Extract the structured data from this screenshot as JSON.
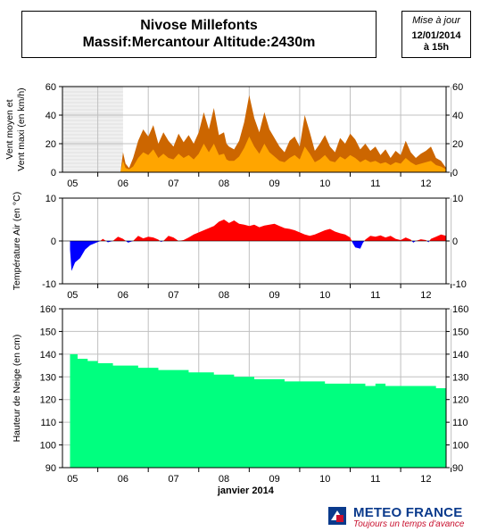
{
  "header": {
    "title_line1": "Nivose Millefonts",
    "title_line2": "Massif:Mercantour Altitude:2430m"
  },
  "update": {
    "label": "Mise à jour",
    "date": "12/01/2014",
    "time": "à 15h"
  },
  "logo": {
    "name": "METEO FRANCE",
    "slogan": "Toujours un temps d'avance",
    "colors": {
      "blue": "#0a3a8c",
      "red": "#c8102e"
    }
  },
  "chart_data": [
    {
      "type": "area",
      "ylabel": "Vent moyen et\nVent maxi (en km/h)",
      "x": [
        "05",
        "06",
        "07",
        "08",
        "09",
        "10",
        "11",
        "12"
      ],
      "ylim": [
        0,
        60
      ],
      "yticks": [
        0,
        20,
        40,
        60
      ],
      "grid": true,
      "colors": {
        "max": "#cc6600",
        "mean": "#ffa500",
        "nodata": "#e8e8e8"
      },
      "nodata_range": [
        "05",
        "06"
      ],
      "series": [
        {
          "name": "",
          "role": "max",
          "values": [
            [
              5.95,
              0
            ],
            [
              6.0,
              14
            ],
            [
              6.05,
              6
            ],
            [
              6.12,
              3
            ],
            [
              6.2,
              10
            ],
            [
              6.3,
              22
            ],
            [
              6.4,
              30
            ],
            [
              6.5,
              25
            ],
            [
              6.6,
              33
            ],
            [
              6.7,
              20
            ],
            [
              6.8,
              28
            ],
            [
              6.9,
              22
            ],
            [
              7.0,
              18
            ],
            [
              7.1,
              27
            ],
            [
              7.2,
              21
            ],
            [
              7.3,
              26
            ],
            [
              7.4,
              20
            ],
            [
              7.5,
              28
            ],
            [
              7.6,
              42
            ],
            [
              7.7,
              30
            ],
            [
              7.8,
              45
            ],
            [
              7.9,
              26
            ],
            [
              8.0,
              28
            ],
            [
              8.05,
              20
            ],
            [
              8.1,
              18
            ],
            [
              8.2,
              16
            ],
            [
              8.3,
              22
            ],
            [
              8.4,
              35
            ],
            [
              8.5,
              54
            ],
            [
              8.6,
              38
            ],
            [
              8.7,
              28
            ],
            [
              8.8,
              42
            ],
            [
              8.9,
              30
            ],
            [
              9.0,
              24
            ],
            [
              9.1,
              18
            ],
            [
              9.2,
              14
            ],
            [
              9.3,
              22
            ],
            [
              9.4,
              25
            ],
            [
              9.5,
              18
            ],
            [
              9.6,
              40
            ],
            [
              9.7,
              28
            ],
            [
              9.8,
              15
            ],
            [
              9.9,
              20
            ],
            [
              10.0,
              26
            ],
            [
              10.1,
              18
            ],
            [
              10.2,
              14
            ],
            [
              10.3,
              24
            ],
            [
              10.4,
              20
            ],
            [
              10.5,
              27
            ],
            [
              10.6,
              23
            ],
            [
              10.7,
              16
            ],
            [
              10.8,
              20
            ],
            [
              10.9,
              15
            ],
            [
              11.0,
              18
            ],
            [
              11.1,
              12
            ],
            [
              11.2,
              16
            ],
            [
              11.3,
              10
            ],
            [
              11.4,
              15
            ],
            [
              11.5,
              12
            ],
            [
              11.6,
              22
            ],
            [
              11.7,
              14
            ],
            [
              11.8,
              10
            ],
            [
              11.9,
              13
            ],
            [
              12.0,
              15
            ],
            [
              12.1,
              18
            ],
            [
              12.2,
              10
            ],
            [
              12.3,
              8
            ],
            [
              12.4,
              3
            ]
          ]
        },
        {
          "name": "",
          "role": "mean",
          "values": [
            [
              5.95,
              0
            ],
            [
              6.0,
              8
            ],
            [
              6.05,
              3
            ],
            [
              6.12,
              2
            ],
            [
              6.2,
              4
            ],
            [
              6.3,
              10
            ],
            [
              6.4,
              14
            ],
            [
              6.5,
              12
            ],
            [
              6.6,
              16
            ],
            [
              6.7,
              10
            ],
            [
              6.8,
              13
            ],
            [
              6.9,
              10
            ],
            [
              7.0,
              9
            ],
            [
              7.1,
              13
            ],
            [
              7.2,
              10
            ],
            [
              7.3,
              12
            ],
            [
              7.4,
              9
            ],
            [
              7.5,
              13
            ],
            [
              7.6,
              20
            ],
            [
              7.7,
              14
            ],
            [
              7.8,
              20
            ],
            [
              7.9,
              12
            ],
            [
              8.0,
              13
            ],
            [
              8.05,
              9
            ],
            [
              8.1,
              8
            ],
            [
              8.2,
              8
            ],
            [
              8.3,
              11
            ],
            [
              8.4,
              17
            ],
            [
              8.5,
              25
            ],
            [
              8.6,
              18
            ],
            [
              8.7,
              13
            ],
            [
              8.8,
              20
            ],
            [
              8.9,
              14
            ],
            [
              9.0,
              11
            ],
            [
              9.1,
              8
            ],
            [
              9.2,
              7
            ],
            [
              9.3,
              10
            ],
            [
              9.4,
              12
            ],
            [
              9.5,
              9
            ],
            [
              9.6,
              18
            ],
            [
              9.7,
              13
            ],
            [
              9.8,
              7
            ],
            [
              9.9,
              9
            ],
            [
              10.0,
              12
            ],
            [
              10.1,
              8
            ],
            [
              10.2,
              7
            ],
            [
              10.3,
              11
            ],
            [
              10.4,
              9
            ],
            [
              10.5,
              12
            ],
            [
              10.6,
              10
            ],
            [
              10.7,
              7
            ],
            [
              10.8,
              9
            ],
            [
              10.9,
              7
            ],
            [
              11.0,
              8
            ],
            [
              11.1,
              6
            ],
            [
              11.2,
              7
            ],
            [
              11.3,
              5
            ],
            [
              11.4,
              7
            ],
            [
              11.5,
              6
            ],
            [
              11.6,
              10
            ],
            [
              11.7,
              7
            ],
            [
              11.8,
              5
            ],
            [
              11.9,
              6
            ],
            [
              12.0,
              7
            ],
            [
              12.1,
              8
            ],
            [
              12.2,
              5
            ],
            [
              12.3,
              4
            ],
            [
              12.4,
              2
            ]
          ]
        }
      ]
    },
    {
      "type": "area",
      "ylabel": "Température Air (en °C)",
      "x": [
        "05",
        "06",
        "07",
        "08",
        "09",
        "10",
        "11",
        "12"
      ],
      "ylim": [
        -10,
        10
      ],
      "yticks": [
        -10,
        0,
        10
      ],
      "grid": true,
      "colors": {
        "positive": "#ff0000",
        "negative": "#0000ff"
      },
      "series": [
        {
          "name": "",
          "values": [
            [
              4.95,
              -2
            ],
            [
              4.98,
              -7
            ],
            [
              5.05,
              -5
            ],
            [
              5.15,
              -4
            ],
            [
              5.25,
              -2
            ],
            [
              5.35,
              -1
            ],
            [
              5.45,
              -0.5
            ],
            [
              5.55,
              0
            ],
            [
              5.6,
              0.5
            ],
            [
              5.7,
              -0.3
            ],
            [
              5.8,
              0
            ],
            [
              5.9,
              1
            ],
            [
              6.0,
              0.5
            ],
            [
              6.1,
              -0.4
            ],
            [
              6.2,
              0
            ],
            [
              6.3,
              1.2
            ],
            [
              6.4,
              0.6
            ],
            [
              6.5,
              1
            ],
            [
              6.6,
              0.8
            ],
            [
              6.7,
              0.3
            ],
            [
              6.75,
              -0.2
            ],
            [
              6.8,
              0
            ],
            [
              6.9,
              1.2
            ],
            [
              7.0,
              0.8
            ],
            [
              7.1,
              0
            ],
            [
              7.2,
              0.2
            ],
            [
              7.3,
              0.8
            ],
            [
              7.4,
              1.5
            ],
            [
              7.5,
              2
            ],
            [
              7.6,
              2.5
            ],
            [
              7.7,
              3
            ],
            [
              7.8,
              3.5
            ],
            [
              7.9,
              4.5
            ],
            [
              8.0,
              5
            ],
            [
              8.1,
              4.2
            ],
            [
              8.2,
              4.8
            ],
            [
              8.3,
              4
            ],
            [
              8.4,
              3.8
            ],
            [
              8.5,
              3.5
            ],
            [
              8.6,
              3.8
            ],
            [
              8.7,
              3.2
            ],
            [
              8.8,
              3.6
            ],
            [
              8.9,
              3.8
            ],
            [
              9.0,
              4
            ],
            [
              9.1,
              3.5
            ],
            [
              9.2,
              3
            ],
            [
              9.3,
              2.8
            ],
            [
              9.4,
              2.5
            ],
            [
              9.5,
              2
            ],
            [
              9.6,
              1.5
            ],
            [
              9.7,
              1.2
            ],
            [
              9.8,
              1.5
            ],
            [
              9.9,
              2
            ],
            [
              10.0,
              2.5
            ],
            [
              10.1,
              2.8
            ],
            [
              10.2,
              2.2
            ],
            [
              10.3,
              1.8
            ],
            [
              10.4,
              1.5
            ],
            [
              10.5,
              0.8
            ],
            [
              10.55,
              -0.5
            ],
            [
              10.6,
              -1.5
            ],
            [
              10.7,
              -1.8
            ],
            [
              10.75,
              -0.5
            ],
            [
              10.8,
              0.3
            ],
            [
              10.9,
              1.2
            ],
            [
              11.0,
              1
            ],
            [
              11.1,
              1.3
            ],
            [
              11.2,
              0.8
            ],
            [
              11.3,
              1.2
            ],
            [
              11.4,
              0.5
            ],
            [
              11.5,
              0.2
            ],
            [
              11.6,
              0.8
            ],
            [
              11.7,
              0.3
            ],
            [
              11.75,
              -0.4
            ],
            [
              11.8,
              0
            ],
            [
              11.9,
              0.4
            ],
            [
              12.0,
              0.2
            ],
            [
              12.05,
              -0.3
            ],
            [
              12.1,
              0.5
            ],
            [
              12.2,
              1
            ],
            [
              12.3,
              1.5
            ],
            [
              12.4,
              1.2
            ]
          ]
        }
      ]
    },
    {
      "type": "area",
      "ylabel": "Hauteur de Neige (en cm)",
      "xlabel": "janvier 2014",
      "x": [
        "05",
        "06",
        "07",
        "08",
        "09",
        "10",
        "11",
        "12"
      ],
      "ylim": [
        90,
        160
      ],
      "yticks": [
        90,
        100,
        110,
        120,
        130,
        140,
        150,
        160
      ],
      "grid": true,
      "colors": {
        "fill": "#00ff7f"
      },
      "series": [
        {
          "name": "",
          "values": [
            [
              4.95,
              140
            ],
            [
              5.0,
              140
            ],
            [
              5.1,
              138
            ],
            [
              5.3,
              137
            ],
            [
              5.5,
              136
            ],
            [
              5.7,
              136
            ],
            [
              5.8,
              135
            ],
            [
              6.0,
              135
            ],
            [
              6.3,
              134
            ],
            [
              6.5,
              134
            ],
            [
              6.7,
              133
            ],
            [
              7.0,
              133
            ],
            [
              7.3,
              132
            ],
            [
              7.6,
              132
            ],
            [
              7.8,
              131
            ],
            [
              8.0,
              131
            ],
            [
              8.2,
              130
            ],
            [
              8.4,
              130
            ],
            [
              8.6,
              129
            ],
            [
              8.8,
              129
            ],
            [
              9.0,
              129
            ],
            [
              9.2,
              128
            ],
            [
              9.5,
              128
            ],
            [
              9.8,
              128
            ],
            [
              10.0,
              127
            ],
            [
              10.3,
              127
            ],
            [
              10.5,
              127
            ],
            [
              10.8,
              126
            ],
            [
              11.0,
              127
            ],
            [
              11.2,
              126
            ],
            [
              11.5,
              126
            ],
            [
              11.8,
              126
            ],
            [
              12.0,
              126
            ],
            [
              12.2,
              125
            ],
            [
              12.4,
              125
            ]
          ]
        }
      ]
    }
  ]
}
